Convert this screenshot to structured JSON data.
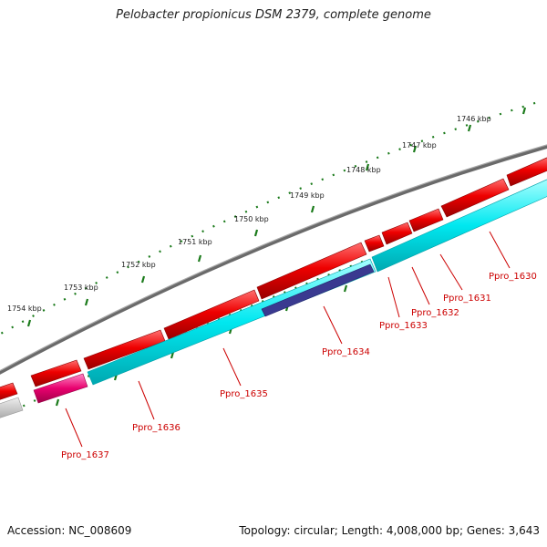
{
  "title": "Pelobacter propionicus DSM 2379, complete genome",
  "footer": {
    "accession_label": "Accession:",
    "accession": "NC_008609",
    "topology_text": "Topology: circular; Length: 4,008,000 bp; Genes: 3,643"
  },
  "scale_labels": [
    {
      "text": "1746 kbp",
      "kbp": 1746
    },
    {
      "text": "1747 kbp",
      "kbp": 1747
    },
    {
      "text": "1748 kbp",
      "kbp": 1748
    },
    {
      "text": "1749 kbp",
      "kbp": 1749
    },
    {
      "text": "1750 kbp",
      "kbp": 1750
    },
    {
      "text": "1751 kbp",
      "kbp": 1751
    },
    {
      "text": "1752 kbp",
      "kbp": 1752
    },
    {
      "text": "1753 kbp",
      "kbp": 1753
    },
    {
      "text": "1754 kbp",
      "kbp": 1754
    }
  ],
  "gene_labels": [
    {
      "text": "Ppro_1630"
    },
    {
      "text": "Ppro_1631"
    },
    {
      "text": "Ppro_1632"
    },
    {
      "text": "Ppro_1633"
    },
    {
      "text": "Ppro_1634"
    },
    {
      "text": "Ppro_1635"
    },
    {
      "text": "Ppro_1636"
    },
    {
      "text": "Ppro_1637"
    }
  ],
  "colors": {
    "backbone": "#7a7a7a",
    "gene_red": "#ee0000",
    "gene_cyan": "#00e8f0",
    "gene_navy": "#3a3a90",
    "gene_magenta": "#e8006e",
    "gene_grey": "#c0c0c0",
    "tick_green": "#1a7a1a",
    "label_red": "#cc0000"
  }
}
